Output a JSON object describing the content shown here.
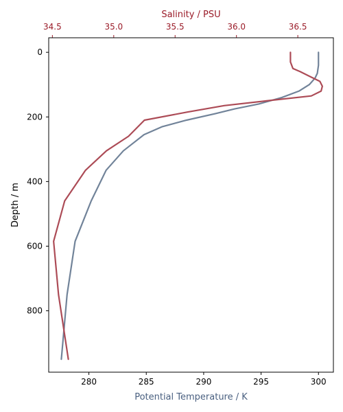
{
  "chart_data": {
    "type": "line",
    "title": "",
    "ylabel": "Depth / m",
    "bottom_xlabel": "Potential Temperature / K",
    "top_xlabel": "Salinity / PSU",
    "ylim": [
      990,
      -45
    ],
    "bottom_xlim": [
      276.5,
      301.3
    ],
    "top_xlim": [
      34.47,
      36.79
    ],
    "yticks": [
      0,
      200,
      400,
      600,
      800
    ],
    "bottom_xticks": [
      280,
      285,
      290,
      295,
      300
    ],
    "top_xticks": [
      34.5,
      35.0,
      35.5,
      36.0,
      36.5
    ],
    "grid": false,
    "colors": {
      "temperature": "#718399",
      "salinity": "#ac4b56",
      "bottom_axis_label": "#4a6080",
      "top_axis": "#9a1b28"
    },
    "series": [
      {
        "axis": "bottom",
        "color": "#718399",
        "x": [
          300.0,
          300.0,
          299.9,
          299.7,
          299.2,
          298.3,
          296.8,
          294.8,
          292.7,
          291.0,
          288.5,
          286.4,
          284.8,
          283.0,
          281.5,
          280.2,
          278.8,
          278.1,
          277.6
        ],
        "y": [
          0,
          40,
          65,
          80,
          100,
          120,
          140,
          160,
          175,
          190,
          210,
          230,
          255,
          305,
          365,
          460,
          585,
          750,
          950
        ]
      },
      {
        "axis": "top",
        "color": "#ac4b56",
        "x": [
          36.44,
          36.44,
          36.46,
          36.52,
          36.6,
          36.68,
          36.7,
          36.69,
          36.61,
          36.25,
          35.9,
          35.6,
          35.25,
          35.12,
          34.94,
          34.77,
          34.6,
          34.51,
          34.55,
          34.63
        ],
        "y": [
          0,
          30,
          50,
          60,
          75,
          90,
          105,
          120,
          135,
          150,
          165,
          185,
          210,
          260,
          305,
          365,
          460,
          585,
          750,
          950
        ]
      }
    ]
  }
}
